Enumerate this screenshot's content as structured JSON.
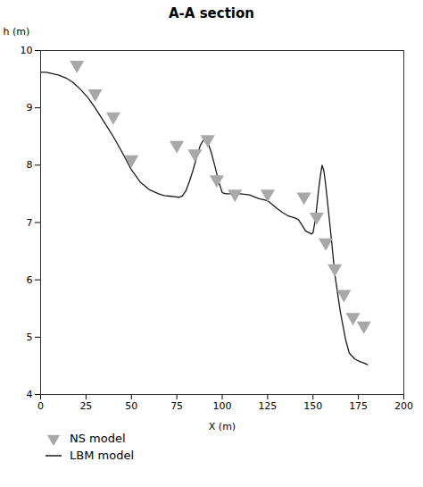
{
  "chart_data": {
    "type": "line",
    "title": "A-A section",
    "xlabel": "X (m)",
    "ylabel": "h (m)",
    "xlim": [
      0,
      200
    ],
    "ylim": [
      4,
      10
    ],
    "xticks": [
      0,
      25,
      50,
      75,
      100,
      125,
      150,
      175,
      200
    ],
    "yticks": [
      4,
      5,
      6,
      7,
      8,
      9,
      10
    ],
    "grid": false,
    "legend": "bottom",
    "series": [
      {
        "name": "NS model",
        "type": "scatter",
        "marker": "triangle-down",
        "color": "#a8a8a8",
        "x": [
          20,
          30,
          40,
          50,
          75,
          85,
          92,
          97,
          107,
          125,
          145,
          152,
          157,
          162,
          167,
          172,
          178
        ],
        "values": [
          9.75,
          9.25,
          8.85,
          8.1,
          8.35,
          8.2,
          8.45,
          7.75,
          7.5,
          7.5,
          7.45,
          7.1,
          6.65,
          6.2,
          5.75,
          5.35,
          5.2
        ]
      },
      {
        "name": "LBM model",
        "type": "line",
        "color": "#1a1a1a",
        "x": [
          0,
          3,
          6,
          10,
          14,
          18,
          22,
          26,
          30,
          35,
          40,
          45,
          50,
          55,
          60,
          65,
          68,
          71,
          74,
          76,
          78,
          80,
          82,
          84,
          86,
          88,
          90,
          92,
          94,
          96,
          98,
          100,
          102,
          104,
          106,
          108,
          110,
          115,
          120,
          125,
          130,
          133,
          136,
          138,
          140,
          142,
          144,
          146,
          148,
          149,
          150,
          151,
          152,
          153,
          154,
          155,
          156,
          157,
          158,
          159,
          160,
          162,
          165,
          168,
          170,
          173,
          176,
          178,
          180
        ],
        "values": [
          9.62,
          9.62,
          9.6,
          9.57,
          9.52,
          9.44,
          9.32,
          9.18,
          9.0,
          8.75,
          8.5,
          8.22,
          7.92,
          7.7,
          7.57,
          7.5,
          7.47,
          7.46,
          7.45,
          7.44,
          7.46,
          7.55,
          7.72,
          7.92,
          8.15,
          8.35,
          8.45,
          8.4,
          8.22,
          7.98,
          7.72,
          7.52,
          7.5,
          7.5,
          7.5,
          7.5,
          7.5,
          7.48,
          7.42,
          7.38,
          7.25,
          7.18,
          7.12,
          7.1,
          7.08,
          7.05,
          6.95,
          6.85,
          6.82,
          6.8,
          6.82,
          7.0,
          7.25,
          7.55,
          7.8,
          8.0,
          7.9,
          7.65,
          7.35,
          7.05,
          6.75,
          6.1,
          5.45,
          4.95,
          4.72,
          4.62,
          4.57,
          4.55,
          4.52
        ]
      }
    ]
  }
}
